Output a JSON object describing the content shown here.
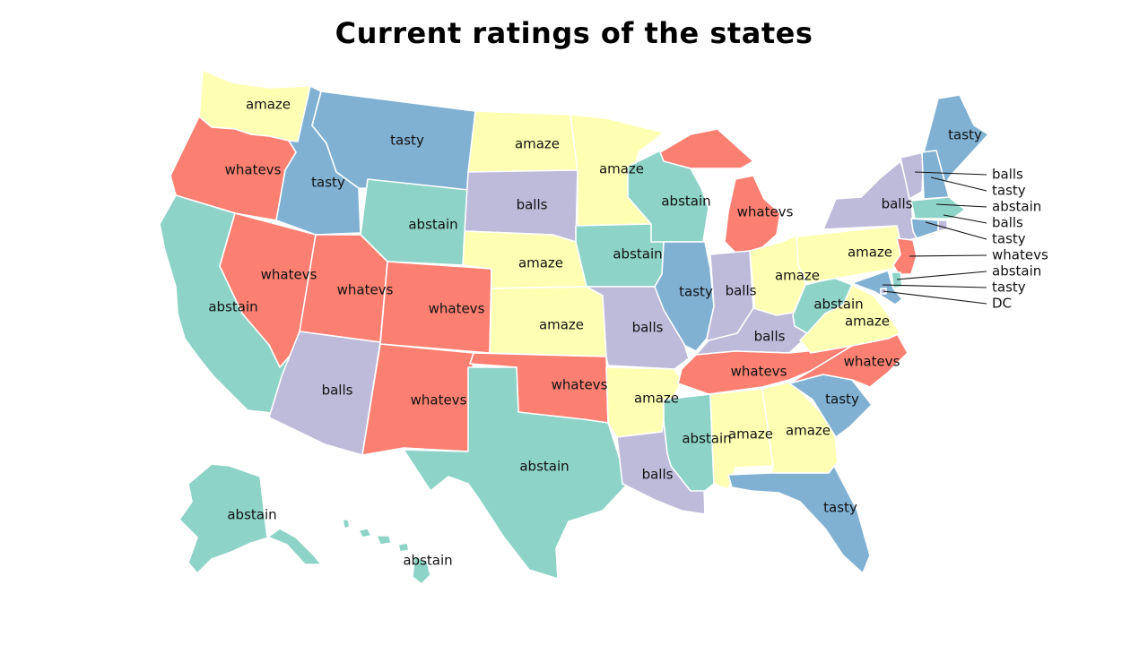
{
  "title": "Current ratings of the states",
  "colors": {
    "amaze": "#ffffb3",
    "tasty": "#80b1d3",
    "whatevs": "#fb8072",
    "balls": "#bebada",
    "abstain": "#8dd3c7"
  },
  "states": [
    {
      "id": "WA",
      "rating": "amaze",
      "label": "amaze"
    },
    {
      "id": "OR",
      "rating": "whatevs",
      "label": "whatevs"
    },
    {
      "id": "CA",
      "rating": "abstain",
      "label": "abstain"
    },
    {
      "id": "ID",
      "rating": "tasty",
      "label": "tasty"
    },
    {
      "id": "NV",
      "rating": "whatevs",
      "label": "whatevs"
    },
    {
      "id": "MT",
      "rating": "tasty",
      "label": "tasty"
    },
    {
      "id": "WY",
      "rating": "abstain",
      "label": "abstain"
    },
    {
      "id": "UT",
      "rating": "whatevs",
      "label": "whatevs"
    },
    {
      "id": "AZ",
      "rating": "balls",
      "label": "balls"
    },
    {
      "id": "CO",
      "rating": "whatevs",
      "label": "whatevs"
    },
    {
      "id": "NM",
      "rating": "whatevs",
      "label": "whatevs"
    },
    {
      "id": "ND",
      "rating": "amaze",
      "label": "amaze"
    },
    {
      "id": "SD",
      "rating": "balls",
      "label": "balls"
    },
    {
      "id": "NE",
      "rating": "amaze",
      "label": "amaze"
    },
    {
      "id": "KS",
      "rating": "amaze",
      "label": "amaze"
    },
    {
      "id": "OK",
      "rating": "whatevs",
      "label": "whatevs"
    },
    {
      "id": "TX",
      "rating": "abstain",
      "label": "abstain"
    },
    {
      "id": "MN",
      "rating": "amaze",
      "label": "amaze"
    },
    {
      "id": "IA",
      "rating": "abstain",
      "label": "abstain"
    },
    {
      "id": "MO",
      "rating": "balls",
      "label": "balls"
    },
    {
      "id": "AR",
      "rating": "amaze",
      "label": "amaze"
    },
    {
      "id": "LA",
      "rating": "balls",
      "label": "balls"
    },
    {
      "id": "WI",
      "rating": "abstain",
      "label": "abstain"
    },
    {
      "id": "IL",
      "rating": "tasty",
      "label": "tasty"
    },
    {
      "id": "MI",
      "rating": "whatevs",
      "label": "whatevs"
    },
    {
      "id": "IN",
      "rating": "balls",
      "label": "balls"
    },
    {
      "id": "OH",
      "rating": "amaze",
      "label": "amaze"
    },
    {
      "id": "KY",
      "rating": "balls",
      "label": "balls"
    },
    {
      "id": "TN",
      "rating": "whatevs",
      "label": "whatevs"
    },
    {
      "id": "MS",
      "rating": "abstain",
      "label": "abstain"
    },
    {
      "id": "AL",
      "rating": "amaze",
      "label": "amaze"
    },
    {
      "id": "GA",
      "rating": "amaze",
      "label": "amaze"
    },
    {
      "id": "FL",
      "rating": "tasty",
      "label": "tasty"
    },
    {
      "id": "SC",
      "rating": "tasty",
      "label": "tasty"
    },
    {
      "id": "NC",
      "rating": "whatevs",
      "label": "whatevs"
    },
    {
      "id": "VA",
      "rating": "amaze",
      "label": "amaze"
    },
    {
      "id": "WV",
      "rating": "abstain",
      "label": "abstain"
    },
    {
      "id": "PA",
      "rating": "amaze",
      "label": "amaze"
    },
    {
      "id": "NY",
      "rating": "balls",
      "label": "balls"
    },
    {
      "id": "ME",
      "rating": "tasty",
      "label": "tasty"
    },
    {
      "id": "AK",
      "rating": "abstain",
      "label": "abstain"
    },
    {
      "id": "HI",
      "rating": "abstain",
      "label": "abstain"
    },
    {
      "id": "VT",
      "rating": "balls",
      "label": ""
    },
    {
      "id": "NH",
      "rating": "tasty",
      "label": ""
    },
    {
      "id": "MA",
      "rating": "abstain",
      "label": ""
    },
    {
      "id": "RI",
      "rating": "balls",
      "label": ""
    },
    {
      "id": "CT",
      "rating": "tasty",
      "label": ""
    },
    {
      "id": "NJ",
      "rating": "whatevs",
      "label": ""
    },
    {
      "id": "DE",
      "rating": "abstain",
      "label": ""
    },
    {
      "id": "MD",
      "rating": "tasty",
      "label": ""
    },
    {
      "id": "DC",
      "rating": "balls",
      "label": ""
    }
  ],
  "callouts": [
    {
      "state": "VT",
      "text": "balls"
    },
    {
      "state": "NH",
      "text": "tasty"
    },
    {
      "state": "MA",
      "text": "abstain"
    },
    {
      "state": "RI",
      "text": "balls"
    },
    {
      "state": "CT",
      "text": "tasty"
    },
    {
      "state": "NJ",
      "text": "whatevs"
    },
    {
      "state": "DE",
      "text": "abstain"
    },
    {
      "state": "MD",
      "text": "tasty"
    },
    {
      "state": "DC",
      "text": "DC"
    }
  ]
}
